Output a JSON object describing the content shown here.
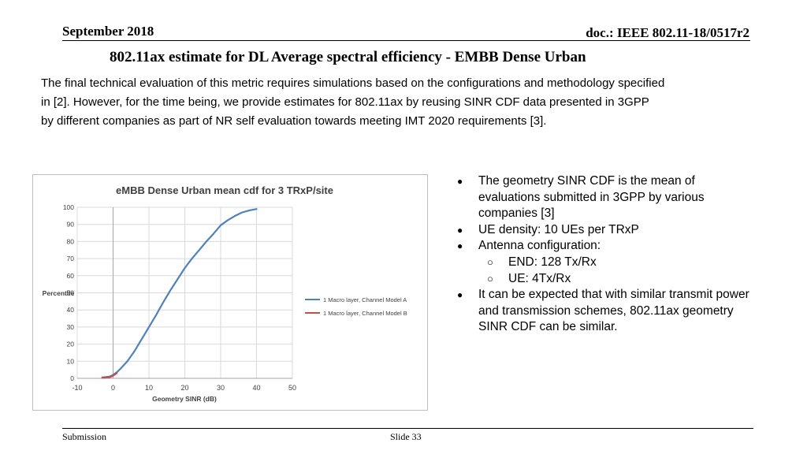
{
  "header": {
    "date": "September  2018",
    "doc_id": "doc.: IEEE 802.11-18/0517r2"
  },
  "slide": {
    "title": "802.11ax estimate for DL Average spectral efficiency - EMBB Dense Urban",
    "intro_lines": [
      "The final technical evaluation of this metric requires simulations based on the configurations and methodology specified",
      "in [2]. However, for the time being, we provide estimates for 802.11ax by  reusing SINR CDF data presented in 3GPP",
      "by different companies as part of NR self evaluation towards meeting IMT 2020 requirements [3]."
    ]
  },
  "bullets": [
    {
      "level": 0,
      "marker": "●",
      "text": "The geometry SINR CDF is the mean of"
    },
    {
      "level": 0,
      "marker": "",
      "text": "evaluations submitted in 3GPP by various"
    },
    {
      "level": 0,
      "marker": "",
      "text": "companies  [3]"
    },
    {
      "level": 0,
      "marker": "●",
      "text": "UE density: 10 UEs per TRxP"
    },
    {
      "level": 0,
      "marker": "●",
      "text": "Antenna configuration:"
    },
    {
      "level": 1,
      "marker": "○",
      "text": "END: 128 Tx/Rx"
    },
    {
      "level": 1,
      "marker": "○",
      "text": "UE: 4Tx/Rx"
    },
    {
      "level": 0,
      "marker": "●",
      "text": "It can be expected  that with similar transmit power"
    },
    {
      "level": 0,
      "marker": "",
      "text": "and transmission schemes, 802.11ax geometry"
    },
    {
      "level": 0,
      "marker": "",
      "text": "SINR CDF can be similar."
    }
  ],
  "footer": {
    "left": "Submission",
    "center": "Slide 33"
  },
  "chart_data": {
    "type": "line",
    "title": "eMBB Dense Urban mean cdf for 3 TRxP/site",
    "xlabel": "Geometry SINR (dB)",
    "ylabel": "Percentile",
    "xlim": [
      -10,
      50
    ],
    "ylim": [
      0,
      100
    ],
    "xticks": [
      -10,
      0,
      10,
      20,
      30,
      40,
      50
    ],
    "yticks": [
      0,
      10,
      20,
      30,
      40,
      50,
      60,
      70,
      80,
      90,
      100
    ],
    "grid": true,
    "legend_position": "right",
    "series": [
      {
        "name": "1 Macro layer, Channel  Model A",
        "color": "#4f81bd",
        "x": [
          -3,
          -1,
          0,
          1,
          2,
          4,
          6,
          8,
          10,
          12,
          14,
          16,
          18,
          20,
          22,
          24,
          26,
          28,
          30,
          32,
          34,
          36,
          38,
          40
        ],
        "y": [
          0.5,
          1,
          2,
          3.5,
          5.5,
          10,
          16,
          23,
          30,
          37,
          44.5,
          51.5,
          58,
          64.5,
          70,
          75,
          80,
          84.5,
          89.5,
          92.5,
          95,
          97,
          98.2,
          99
        ]
      },
      {
        "name": "1 Macro layer, Channel Model B",
        "color": "#c0504d",
        "x": [
          -3,
          -1,
          0,
          1
        ],
        "y": [
          0.3,
          0.6,
          1.5,
          3
        ]
      }
    ]
  }
}
